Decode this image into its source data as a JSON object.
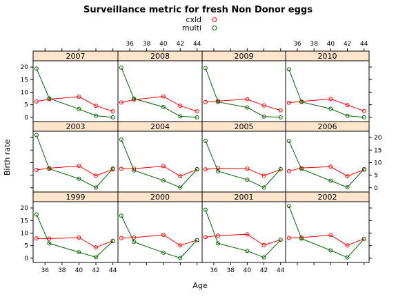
{
  "chart_data": {
    "type": "line",
    "title": "Surveillance metric for fresh Non Donor eggs",
    "xlabel": "Age",
    "ylabel": "Birth rate",
    "x": [
      35,
      36.5,
      40,
      42,
      44
    ],
    "x_ticks": [
      36,
      38,
      40,
      42,
      44
    ],
    "y_ticks": [
      0,
      5,
      10,
      15,
      20
    ],
    "xlim": [
      34.6,
      44.6
    ],
    "ylim": [
      -1.7,
      22.5
    ],
    "legend": {
      "placement": "top",
      "entries": [
        {
          "name": "cxld",
          "color": "#ff0000"
        },
        {
          "name": "multi",
          "color": "#006400"
        }
      ]
    },
    "grid": false,
    "panels": [
      {
        "year": "2007",
        "cxld": [
          6.3,
          7.2,
          8.2,
          4.6,
          2.4
        ],
        "multi": [
          19.4,
          7.5,
          3.3,
          0.6,
          0.0
        ]
      },
      {
        "year": "2008",
        "cxld": [
          5.9,
          7.0,
          8.3,
          4.6,
          2.4
        ],
        "multi": [
          19.8,
          7.4,
          4.1,
          0.4,
          0.0
        ]
      },
      {
        "year": "2009",
        "cxld": [
          6.1,
          6.5,
          7.2,
          4.7,
          2.8
        ],
        "multi": [
          19.6,
          6.1,
          3.9,
          0.3,
          0.0
        ]
      },
      {
        "year": "2010",
        "cxld": [
          5.8,
          6.3,
          7.3,
          4.9,
          2.5
        ],
        "multi": [
          19.1,
          6.1,
          3.4,
          0.6,
          0.0
        ]
      },
      {
        "year": "2003",
        "cxld": [
          7.1,
          7.8,
          8.7,
          4.8,
          7.3
        ],
        "multi": [
          21.0,
          7.5,
          3.6,
          0.1,
          7.6
        ]
      },
      {
        "year": "2004",
        "cxld": [
          7.5,
          7.6,
          8.6,
          4.6,
          7.3
        ],
        "multi": [
          19.2,
          6.9,
          2.9,
          0.1,
          7.4
        ]
      },
      {
        "year": "2005",
        "cxld": [
          7.3,
          7.8,
          7.6,
          4.8,
          7.3
        ],
        "multi": [
          18.7,
          6.6,
          3.2,
          0.1,
          7.4
        ]
      },
      {
        "year": "2006",
        "cxld": [
          6.6,
          7.9,
          8.4,
          4.6,
          7.2
        ],
        "multi": [
          18.6,
          7.4,
          2.8,
          0.2,
          7.4
        ]
      },
      {
        "year": "1999",
        "cxld": [
          7.9,
          7.8,
          8.2,
          4.3,
          6.9
        ],
        "multi": [
          17.4,
          5.9,
          2.4,
          0.4,
          6.8
        ]
      },
      {
        "year": "2000",
        "cxld": [
          8.0,
          8.2,
          9.3,
          5.1,
          7.2
        ],
        "multi": [
          16.9,
          6.5,
          2.2,
          0.1,
          7.2
        ]
      },
      {
        "year": "2001",
        "cxld": [
          8.4,
          9.0,
          9.5,
          5.2,
          7.3
        ],
        "multi": [
          19.3,
          5.9,
          2.9,
          0.3,
          7.3
        ]
      },
      {
        "year": "2002",
        "cxld": [
          8.1,
          8.2,
          9.2,
          5.1,
          7.7
        ],
        "multi": [
          20.8,
          7.8,
          3.1,
          0.3,
          7.7
        ]
      }
    ]
  }
}
